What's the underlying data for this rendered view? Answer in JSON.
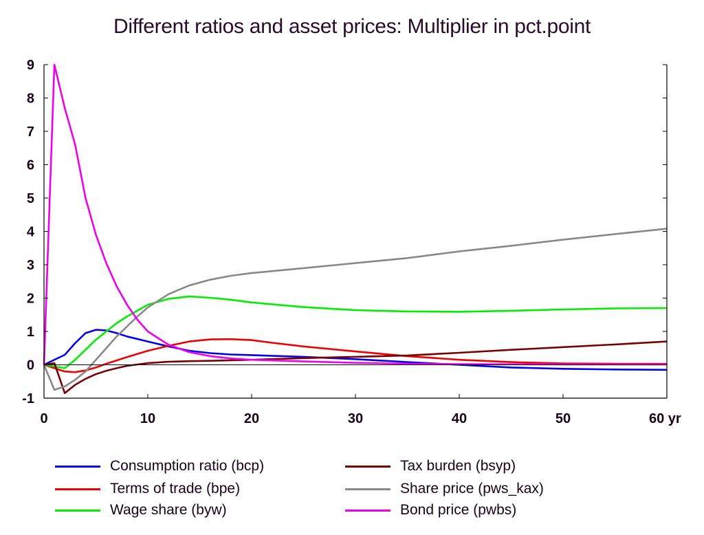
{
  "chart_data": {
    "type": "line",
    "title": "Different ratios and asset prices: Multiplier in pct.point",
    "xlabel": "",
    "ylabel": "",
    "x_tick_labels": [
      "0",
      "10",
      "20",
      "30",
      "40",
      "50",
      "60 yr"
    ],
    "x_ticks": [
      0,
      10,
      20,
      30,
      40,
      50,
      60
    ],
    "y_tick_labels": [
      "-1",
      "0",
      "1",
      "2",
      "3",
      "4",
      "5",
      "6",
      "7",
      "8",
      "9"
    ],
    "y_ticks": [
      -1,
      0,
      1,
      2,
      3,
      4,
      5,
      6,
      7,
      8,
      9
    ],
    "xlim": [
      0,
      60
    ],
    "ylim": [
      -1,
      9
    ],
    "grid": false,
    "legend_position": "bottom",
    "series": [
      {
        "name": "Consumption ratio (bcp)",
        "color": "#0000ee",
        "points": [
          [
            0,
            0
          ],
          [
            1,
            0.15
          ],
          [
            2,
            0.3
          ],
          [
            3,
            0.65
          ],
          [
            4,
            0.95
          ],
          [
            5,
            1.05
          ],
          [
            6,
            1.03
          ],
          [
            7,
            0.95
          ],
          [
            8,
            0.85
          ],
          [
            10,
            0.7
          ],
          [
            12,
            0.55
          ],
          [
            14,
            0.42
          ],
          [
            16,
            0.35
          ],
          [
            18,
            0.31
          ],
          [
            20,
            0.29
          ],
          [
            25,
            0.24
          ],
          [
            30,
            0.17
          ],
          [
            35,
            0.08
          ],
          [
            40,
            0.0
          ],
          [
            45,
            -0.08
          ],
          [
            50,
            -0.12
          ],
          [
            55,
            -0.14
          ],
          [
            60,
            -0.15
          ]
        ]
      },
      {
        "name": "Terms of trade (bpe)",
        "color": "#ee0000",
        "points": [
          [
            0,
            0
          ],
          [
            1,
            -0.1
          ],
          [
            2,
            -0.2
          ],
          [
            3,
            -0.22
          ],
          [
            4,
            -0.17
          ],
          [
            5,
            -0.08
          ],
          [
            6,
            0.03
          ],
          [
            8,
            0.23
          ],
          [
            10,
            0.42
          ],
          [
            12,
            0.57
          ],
          [
            14,
            0.7
          ],
          [
            16,
            0.76
          ],
          [
            18,
            0.77
          ],
          [
            20,
            0.74
          ],
          [
            22,
            0.66
          ],
          [
            25,
            0.55
          ],
          [
            30,
            0.4
          ],
          [
            35,
            0.26
          ],
          [
            40,
            0.15
          ],
          [
            45,
            0.08
          ],
          [
            50,
            0.04
          ],
          [
            55,
            0.03
          ],
          [
            60,
            0.03
          ]
        ]
      },
      {
        "name": "Wage share (byw)",
        "color": "#00ee00",
        "points": [
          [
            0,
            0
          ],
          [
            1,
            -0.05
          ],
          [
            2,
            -0.1
          ],
          [
            3,
            0.15
          ],
          [
            4,
            0.45
          ],
          [
            5,
            0.75
          ],
          [
            6,
            1.0
          ],
          [
            7,
            1.25
          ],
          [
            8,
            1.45
          ],
          [
            10,
            1.8
          ],
          [
            12,
            1.98
          ],
          [
            14,
            2.05
          ],
          [
            16,
            2.01
          ],
          [
            18,
            1.95
          ],
          [
            20,
            1.87
          ],
          [
            25,
            1.73
          ],
          [
            30,
            1.64
          ],
          [
            35,
            1.6
          ],
          [
            40,
            1.59
          ],
          [
            45,
            1.62
          ],
          [
            50,
            1.66
          ],
          [
            55,
            1.69
          ],
          [
            60,
            1.7
          ]
        ]
      },
      {
        "name": "Tax burden (bsyp)",
        "color": "#7a0000",
        "points": [
          [
            0,
            0
          ],
          [
            1,
            0.05
          ],
          [
            2,
            -0.85
          ],
          [
            3,
            -0.6
          ],
          [
            4,
            -0.42
          ],
          [
            5,
            -0.28
          ],
          [
            6,
            -0.18
          ],
          [
            7,
            -0.1
          ],
          [
            8,
            -0.03
          ],
          [
            10,
            0.05
          ],
          [
            12,
            0.09
          ],
          [
            14,
            0.11
          ],
          [
            16,
            0.12
          ],
          [
            20,
            0.15
          ],
          [
            25,
            0.2
          ],
          [
            30,
            0.24
          ],
          [
            35,
            0.28
          ],
          [
            40,
            0.36
          ],
          [
            45,
            0.45
          ],
          [
            50,
            0.53
          ],
          [
            55,
            0.61
          ],
          [
            60,
            0.7
          ]
        ]
      },
      {
        "name": "Share price (pws_kax)",
        "color": "#888888",
        "points": [
          [
            0,
            0
          ],
          [
            1,
            -0.75
          ],
          [
            2,
            -0.65
          ],
          [
            3,
            -0.45
          ],
          [
            4,
            -0.2
          ],
          [
            5,
            0.15
          ],
          [
            6,
            0.5
          ],
          [
            7,
            0.85
          ],
          [
            8,
            1.15
          ],
          [
            9,
            1.45
          ],
          [
            10,
            1.72
          ],
          [
            12,
            2.12
          ],
          [
            14,
            2.38
          ],
          [
            16,
            2.55
          ],
          [
            18,
            2.67
          ],
          [
            20,
            2.75
          ],
          [
            25,
            2.9
          ],
          [
            30,
            3.05
          ],
          [
            35,
            3.2
          ],
          [
            40,
            3.4
          ],
          [
            45,
            3.57
          ],
          [
            50,
            3.75
          ],
          [
            55,
            3.92
          ],
          [
            60,
            4.08
          ]
        ]
      },
      {
        "name": "Bond price (pwbs)",
        "color": "#ee00ee",
        "points": [
          [
            0,
            0
          ],
          [
            0.5,
            4.5
          ],
          [
            1,
            9.0
          ],
          [
            2,
            7.7
          ],
          [
            3,
            6.6
          ],
          [
            4,
            5.0
          ],
          [
            5,
            3.9
          ],
          [
            6,
            3.05
          ],
          [
            7,
            2.35
          ],
          [
            8,
            1.8
          ],
          [
            9,
            1.35
          ],
          [
            10,
            1.0
          ],
          [
            12,
            0.6
          ],
          [
            14,
            0.38
          ],
          [
            16,
            0.26
          ],
          [
            18,
            0.19
          ],
          [
            20,
            0.15
          ],
          [
            25,
            0.1
          ],
          [
            30,
            0.06
          ],
          [
            35,
            0.03
          ],
          [
            40,
            0.02
          ],
          [
            50,
            0.01
          ],
          [
            60,
            0.01
          ]
        ]
      }
    ]
  }
}
